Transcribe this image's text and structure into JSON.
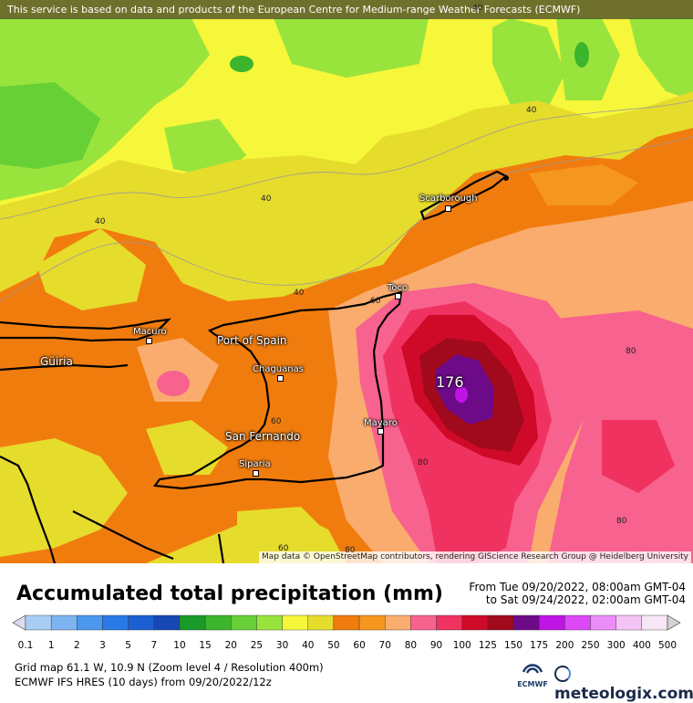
{
  "banner": "This service is based on data and products of the European Centre for Medium-range Weather Forecasts (ECMWF)",
  "attribution": "Map data © OpenStreetMap contributors, rendering GIScience Research Group @ Heidelberg University",
  "title": "Accumulated total precipitation (mm)",
  "date_from": "From Tue 09/20/2022, 08:00am GMT-04",
  "date_to": "to Sat 09/24/2022, 02:00am GMT-04",
  "legend": {
    "values": [
      "0.1",
      "1",
      "2",
      "3",
      "5",
      "7",
      "10",
      "15",
      "20",
      "25",
      "30",
      "40",
      "50",
      "60",
      "70",
      "80",
      "90",
      "100",
      "125",
      "150",
      "175",
      "200",
      "250",
      "300",
      "400",
      "500"
    ],
    "colors": [
      "#dcdcf0",
      "#a9cdf3",
      "#7db4f0",
      "#4b97ee",
      "#2979e6",
      "#1b5fd0",
      "#1548b4",
      "#1a9a28",
      "#3bb52b",
      "#66d036",
      "#99e43c",
      "#f6f63a",
      "#e6dc2c",
      "#f17c0e",
      "#f5961e",
      "#faac6e",
      "#f7628e",
      "#f03260",
      "#cf0a28",
      "#a00a1c",
      "#6c0a88",
      "#c014e6",
      "#dc48f6",
      "#ec8cf8",
      "#f4c4f6",
      "#f6e6f6",
      "#d2d2d2"
    ]
  },
  "places": [
    {
      "name": "Scarborough"
    },
    {
      "name": "Toco"
    },
    {
      "name": "Macuro"
    },
    {
      "name": "Port of Spain"
    },
    {
      "name": "Güiria"
    },
    {
      "name": "Chaguanas"
    },
    {
      "name": "Mayaro"
    },
    {
      "name": "San Fernando"
    },
    {
      "name": "Siparia"
    }
  ],
  "max_value": "176",
  "isolines": [
    "40",
    "40",
    "40",
    "40",
    "40",
    "60",
    "80",
    "60",
    "80",
    "80",
    "80",
    "60"
  ],
  "footer": {
    "grid": "Grid map 61.1 W, 10.9 N (Zoom level 4 / Resolution 400m)",
    "model": "ECMWF IFS HRES (10 days) from 09/20/2022/12z"
  },
  "logos": {
    "ecmwf": "ECMWF",
    "meteologix": "meteologix.com"
  }
}
